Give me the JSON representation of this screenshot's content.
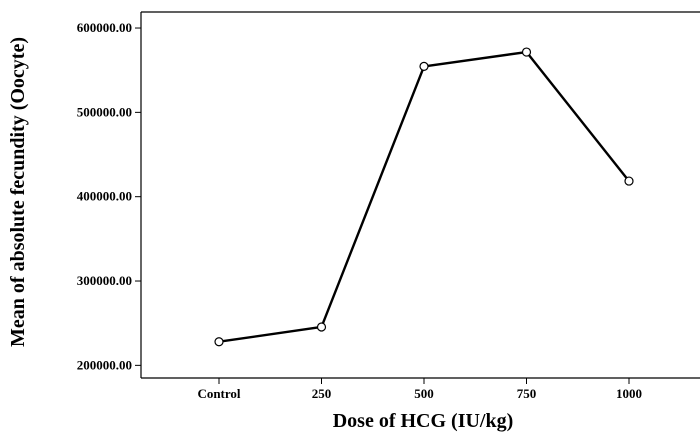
{
  "chart_data": {
    "type": "line",
    "title": "",
    "xlabel": "Dose of HCG (IU/kg)",
    "ylabel": "Mean of absolute fecundity (Oocyte)",
    "categories": [
      "Control",
      "250",
      "500",
      "750",
      "1000"
    ],
    "series": [
      {
        "values": [
          228000,
          245500,
          554500,
          571500,
          418500
        ]
      }
    ],
    "ylim": [
      185000,
      619000
    ],
    "yticks": [
      200000,
      300000,
      400000,
      500000,
      600000
    ],
    "ytick_labels": [
      "200000.00",
      "300000.00",
      "400000.00",
      "500000.00",
      "600000.00"
    ],
    "grid": false,
    "marker": "open-circle",
    "colors": {
      "line": "#000000",
      "background": "#ffffff"
    }
  }
}
